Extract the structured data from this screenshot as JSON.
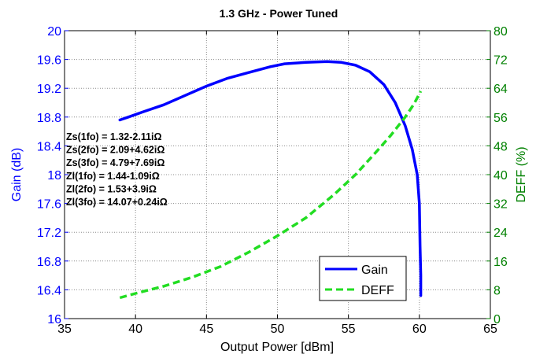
{
  "chart_data": {
    "type": "line",
    "title": "1.3 GHz - Power Tuned",
    "xlabel": "Output Power [dBm]",
    "ylabel_left": "Gain (dB)",
    "ylabel_right": "DEFF (%)",
    "xlim": [
      35,
      65
    ],
    "ylim_left": [
      16,
      20
    ],
    "ylim_right": [
      0,
      80
    ],
    "xticks": [
      35,
      40,
      45,
      50,
      55,
      60,
      65
    ],
    "yticks_left": [
      16,
      16.4,
      16.8,
      17.2,
      17.6,
      18,
      18.4,
      18.8,
      19.2,
      19.6,
      20
    ],
    "yticks_right": [
      0,
      8,
      16,
      24,
      32,
      40,
      48,
      56,
      64,
      72,
      80
    ],
    "grid": true,
    "legend_position": "bottom-right",
    "series": [
      {
        "name": "Gain",
        "axis": "left",
        "color": "#0000ff",
        "style": "solid",
        "x": [
          38.9,
          39.5,
          40.5,
          42,
          43.5,
          45,
          46.5,
          48,
          49.5,
          50.5,
          52,
          53.5,
          54.5,
          55.5,
          56.5,
          57.5,
          58.3,
          59.0,
          59.5,
          59.85,
          60.0,
          60.05,
          60.1,
          60.1
        ],
        "y": [
          18.76,
          18.8,
          18.87,
          18.97,
          19.1,
          19.23,
          19.34,
          19.42,
          19.5,
          19.54,
          19.56,
          19.57,
          19.56,
          19.52,
          19.43,
          19.25,
          19.0,
          18.68,
          18.35,
          18.0,
          17.6,
          17.0,
          16.6,
          16.32
        ]
      },
      {
        "name": "DEFF",
        "axis": "right",
        "color": "#22dd22",
        "style": "dashed",
        "x": [
          38.9,
          40,
          42,
          44,
          46,
          48,
          50,
          52,
          54,
          55.5,
          57,
          58,
          59,
          59.6,
          60.1
        ],
        "y": [
          5.8,
          7,
          9,
          11.5,
          14.5,
          18.5,
          23,
          28,
          34.5,
          40,
          46.5,
          51,
          56,
          59.5,
          63.2
        ]
      }
    ],
    "annotations": [
      "Zs(1fo) = 1.32-2.11iΩ",
      "Zs(2fo) = 2.09+4.62iΩ",
      "Zs(3fo) = 4.79+7.69iΩ",
      "Zl(1fo) = 1.44-1.09iΩ",
      "Zl(2fo) = 1.53+3.9iΩ",
      "Zl(3fo) = 14.07+0.24iΩ"
    ]
  }
}
